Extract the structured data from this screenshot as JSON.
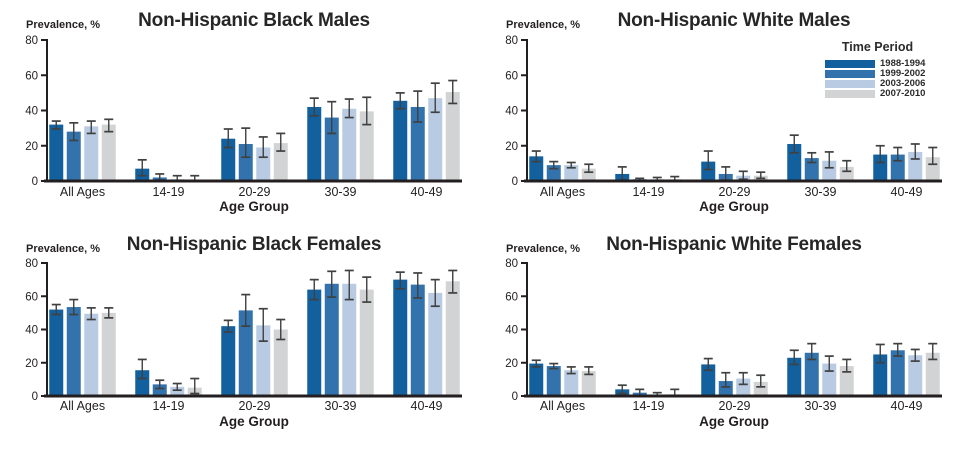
{
  "figure": {
    "background": "#ffffff",
    "y_axis_label": "Prevalence, %",
    "x_axis_label": "Age Group",
    "categories": [
      "All Ages",
      "14-19",
      "20-29",
      "30-39",
      "40-49"
    ],
    "y_ticks": [
      0,
      20,
      40,
      60,
      80
    ],
    "y_max": 80,
    "axis_color": "#231f20",
    "error_bar_color": "#3f4040",
    "legend": {
      "title": "Time Period",
      "entries": [
        {
          "label": "1988-1994",
          "color": "#12609e"
        },
        {
          "label": "1999-2002",
          "color": "#3273ad"
        },
        {
          "label": "2003-2006",
          "color": "#b9cbe2"
        },
        {
          "label": "2007-2010",
          "color": "#d2d3d4"
        }
      ]
    }
  },
  "chart_data": [
    {
      "type": "bar",
      "title": "Non-Hispanic Black Males",
      "xlabel": "Age Group",
      "ylabel": "Prevalence, %",
      "ylim": [
        0,
        80
      ],
      "grid": false,
      "categories": [
        "All Ages",
        "14-19",
        "20-29",
        "30-39",
        "40-49"
      ],
      "series": [
        {
          "name": "1988-1994",
          "values": [
            32,
            7,
            24,
            42,
            45.5
          ],
          "ci_low": [
            29.5,
            3,
            19,
            37,
            41
          ],
          "ci_high": [
            34,
            12,
            29.5,
            47,
            50
          ]
        },
        {
          "name": "1999-2002",
          "values": [
            28,
            2,
            21,
            36,
            42
          ],
          "ci_low": [
            23,
            0.5,
            13.5,
            27,
            33.5
          ],
          "ci_high": [
            33,
            4,
            30,
            45,
            51
          ]
        },
        {
          "name": "2003-2006",
          "values": [
            31,
            1,
            19,
            41,
            47
          ],
          "ci_low": [
            27,
            0,
            13.5,
            36,
            39
          ],
          "ci_high": [
            34,
            3,
            25,
            46.5,
            55.5
          ]
        },
        {
          "name": "2007-2010",
          "values": [
            32,
            0.5,
            21.5,
            39.5,
            50.5
          ],
          "ci_low": [
            28,
            0,
            17,
            32,
            44
          ],
          "ci_high": [
            35,
            3,
            27,
            47.5,
            57
          ]
        }
      ]
    },
    {
      "type": "bar",
      "title": "Non-Hispanic White Males",
      "xlabel": "Age Group",
      "ylabel": "Prevalence, %",
      "ylim": [
        0,
        80
      ],
      "grid": false,
      "legend_position": "upper-right",
      "categories": [
        "All Ages",
        "14-19",
        "20-29",
        "30-39",
        "40-49"
      ],
      "series": [
        {
          "name": "1988-1994",
          "values": [
            14,
            4,
            11,
            21,
            15
          ],
          "ci_low": [
            11,
            0.5,
            6.5,
            16,
            10.5
          ],
          "ci_high": [
            17,
            8,
            17,
            26,
            20
          ]
        },
        {
          "name": "1999-2002",
          "values": [
            9,
            1,
            4,
            13,
            15
          ],
          "ci_low": [
            7,
            0,
            0.5,
            10.5,
            11.5
          ],
          "ci_high": [
            11,
            1.5,
            8,
            16,
            19
          ]
        },
        {
          "name": "2003-2006",
          "values": [
            9,
            1,
            3,
            11.5,
            16.5
          ],
          "ci_low": [
            7.5,
            0,
            1,
            7.5,
            12.5
          ],
          "ci_high": [
            10.5,
            2,
            5.5,
            16.5,
            21
          ]
        },
        {
          "name": "2007-2010",
          "values": [
            7,
            1,
            3,
            8,
            13.5
          ],
          "ci_low": [
            5,
            0,
            1.5,
            5.5,
            9.5
          ],
          "ci_high": [
            9.5,
            2.5,
            5,
            11.5,
            19
          ]
        }
      ]
    },
    {
      "type": "bar",
      "title": "Non-Hispanic Black Females",
      "xlabel": "Age Group",
      "ylabel": "Prevalence, %",
      "ylim": [
        0,
        80
      ],
      "grid": false,
      "categories": [
        "All Ages",
        "14-19",
        "20-29",
        "30-39",
        "40-49"
      ],
      "series": [
        {
          "name": "1988-1994",
          "values": [
            52,
            15.5,
            42,
            64,
            70
          ],
          "ci_low": [
            49,
            10.5,
            38.5,
            58,
            64.5
          ],
          "ci_high": [
            55,
            22,
            45.5,
            70,
            74.5
          ]
        },
        {
          "name": "1999-2002",
          "values": [
            53.5,
            7,
            51.5,
            67.5,
            67
          ],
          "ci_low": [
            49,
            4.5,
            42,
            59.5,
            59
          ],
          "ci_high": [
            58,
            9.5,
            61,
            75,
            74
          ]
        },
        {
          "name": "2003-2006",
          "values": [
            49.5,
            5.5,
            42.5,
            67.5,
            62
          ],
          "ci_low": [
            46,
            3.5,
            33,
            58,
            54
          ],
          "ci_high": [
            53,
            7.5,
            52.5,
            75.5,
            70
          ]
        },
        {
          "name": "2007-2010",
          "values": [
            50,
            5,
            40,
            64,
            69
          ],
          "ci_low": [
            47,
            1.5,
            34,
            56.5,
            62
          ],
          "ci_high": [
            53,
            10.5,
            46,
            71.5,
            75.5
          ]
        }
      ]
    },
    {
      "type": "bar",
      "title": "Non-Hispanic White Females",
      "xlabel": "Age Group",
      "ylabel": "Prevalence, %",
      "ylim": [
        0,
        80
      ],
      "grid": false,
      "categories": [
        "All Ages",
        "14-19",
        "20-29",
        "30-39",
        "40-49"
      ],
      "series": [
        {
          "name": "1988-1994",
          "values": [
            19.5,
            4,
            19,
            23,
            25
          ],
          "ci_low": [
            17.5,
            1.5,
            15.5,
            19,
            20
          ],
          "ci_high": [
            21.5,
            6.5,
            22.5,
            27.5,
            31
          ]
        },
        {
          "name": "1999-2002",
          "values": [
            18,
            2,
            9,
            26,
            27.5
          ],
          "ci_low": [
            16.5,
            0,
            5.5,
            22,
            24
          ],
          "ci_high": [
            19.5,
            4,
            14,
            31.5,
            31.5
          ]
        },
        {
          "name": "2003-2006",
          "values": [
            15.5,
            0.5,
            10.5,
            19.5,
            24.5
          ],
          "ci_low": [
            13.5,
            0,
            7,
            15,
            21
          ],
          "ci_high": [
            17.5,
            2,
            14,
            24,
            28
          ]
        },
        {
          "name": "2007-2010",
          "values": [
            15,
            1,
            8.5,
            18,
            26
          ],
          "ci_low": [
            13,
            0,
            5.5,
            14.5,
            22
          ],
          "ci_high": [
            17.5,
            4,
            12.5,
            22,
            31.5
          ]
        }
      ]
    }
  ]
}
